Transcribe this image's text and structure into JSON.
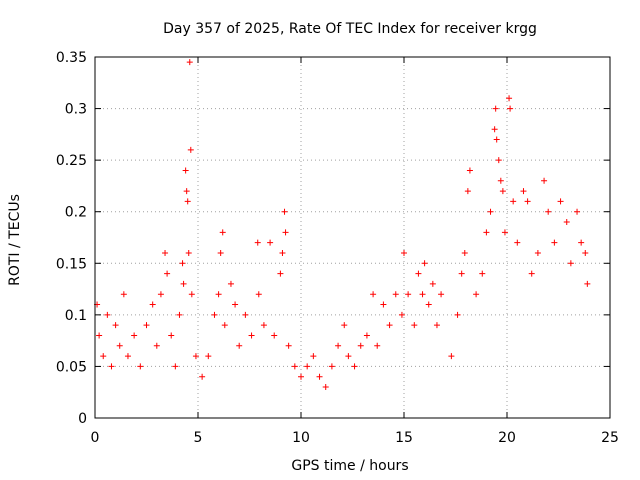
{
  "chart_data": {
    "type": "scatter",
    "title": "Day 357 of 2025, Rate Of TEC Index for receiver krgg",
    "xlabel": "GPS time / hours",
    "ylabel": "ROTI / TECUs",
    "xlim": [
      0,
      25
    ],
    "ylim": [
      0,
      0.35
    ],
    "x_ticks": [
      0,
      5,
      10,
      15,
      20,
      25
    ],
    "y_ticks": [
      0,
      0.05,
      0.1,
      0.15,
      0.2,
      0.25,
      0.3,
      0.35
    ],
    "x_tick_labels": [
      "0",
      "5",
      "10",
      "15",
      "20",
      "25"
    ],
    "y_tick_labels": [
      "0",
      "0.05",
      "0.1",
      "0.15",
      "0.2",
      "0.25",
      "0.3",
      "0.35"
    ],
    "grid": true,
    "marker": "+",
    "color": "#ff0000",
    "series": [
      {
        "points": [
          [
            0.1,
            0.11
          ],
          [
            0.2,
            0.08
          ],
          [
            0.4,
            0.06
          ],
          [
            0.6,
            0.1
          ],
          [
            0.8,
            0.05
          ],
          [
            1.0,
            0.09
          ],
          [
            1.2,
            0.07
          ],
          [
            1.4,
            0.12
          ],
          [
            1.6,
            0.06
          ],
          [
            1.9,
            0.08
          ],
          [
            2.2,
            0.05
          ],
          [
            2.5,
            0.09
          ],
          [
            2.8,
            0.11
          ],
          [
            3.0,
            0.07
          ],
          [
            3.2,
            0.12
          ],
          [
            3.4,
            0.16
          ],
          [
            3.5,
            0.14
          ],
          [
            3.7,
            0.08
          ],
          [
            3.9,
            0.05
          ],
          [
            4.1,
            0.1
          ],
          [
            4.25,
            0.15
          ],
          [
            4.3,
            0.13
          ],
          [
            4.4,
            0.24
          ],
          [
            4.45,
            0.22
          ],
          [
            4.5,
            0.21
          ],
          [
            4.55,
            0.16
          ],
          [
            4.6,
            0.345
          ],
          [
            4.65,
            0.26
          ],
          [
            4.7,
            0.12
          ],
          [
            4.9,
            0.06
          ],
          [
            5.2,
            0.04
          ],
          [
            5.5,
            0.06
          ],
          [
            5.8,
            0.1
          ],
          [
            6.0,
            0.12
          ],
          [
            6.1,
            0.16
          ],
          [
            6.2,
            0.18
          ],
          [
            6.3,
            0.09
          ],
          [
            6.6,
            0.13
          ],
          [
            6.8,
            0.11
          ],
          [
            7.0,
            0.07
          ],
          [
            7.3,
            0.1
          ],
          [
            7.6,
            0.08
          ],
          [
            7.9,
            0.17
          ],
          [
            7.95,
            0.12
          ],
          [
            8.2,
            0.09
          ],
          [
            8.5,
            0.17
          ],
          [
            8.7,
            0.08
          ],
          [
            9.0,
            0.14
          ],
          [
            9.1,
            0.16
          ],
          [
            9.2,
            0.2
          ],
          [
            9.25,
            0.18
          ],
          [
            9.4,
            0.07
          ],
          [
            9.7,
            0.05
          ],
          [
            10.0,
            0.04
          ],
          [
            10.3,
            0.05
          ],
          [
            10.6,
            0.06
          ],
          [
            10.9,
            0.04
          ],
          [
            11.2,
            0.03
          ],
          [
            11.5,
            0.05
          ],
          [
            11.8,
            0.07
          ],
          [
            12.1,
            0.09
          ],
          [
            12.3,
            0.06
          ],
          [
            12.6,
            0.05
          ],
          [
            12.9,
            0.07
          ],
          [
            13.2,
            0.08
          ],
          [
            13.5,
            0.12
          ],
          [
            13.7,
            0.07
          ],
          [
            14.0,
            0.11
          ],
          [
            14.3,
            0.09
          ],
          [
            14.6,
            0.12
          ],
          [
            14.9,
            0.1
          ],
          [
            15.0,
            0.16
          ],
          [
            15.2,
            0.12
          ],
          [
            15.5,
            0.09
          ],
          [
            15.7,
            0.14
          ],
          [
            15.9,
            0.12
          ],
          [
            16.0,
            0.15
          ],
          [
            16.2,
            0.11
          ],
          [
            16.4,
            0.13
          ],
          [
            16.6,
            0.09
          ],
          [
            16.8,
            0.12
          ],
          [
            17.3,
            0.06
          ],
          [
            17.6,
            0.1
          ],
          [
            17.8,
            0.14
          ],
          [
            17.95,
            0.16
          ],
          [
            18.1,
            0.22
          ],
          [
            18.2,
            0.24
          ],
          [
            18.5,
            0.12
          ],
          [
            18.8,
            0.14
          ],
          [
            19.0,
            0.18
          ],
          [
            19.2,
            0.2
          ],
          [
            19.4,
            0.28
          ],
          [
            19.45,
            0.3
          ],
          [
            19.5,
            0.27
          ],
          [
            19.6,
            0.25
          ],
          [
            19.7,
            0.23
          ],
          [
            19.8,
            0.22
          ],
          [
            19.9,
            0.18
          ],
          [
            20.1,
            0.31
          ],
          [
            20.15,
            0.3
          ],
          [
            20.3,
            0.21
          ],
          [
            20.5,
            0.17
          ],
          [
            20.8,
            0.22
          ],
          [
            21.0,
            0.21
          ],
          [
            21.2,
            0.14
          ],
          [
            21.5,
            0.16
          ],
          [
            21.8,
            0.23
          ],
          [
            22.0,
            0.2
          ],
          [
            22.3,
            0.17
          ],
          [
            22.6,
            0.21
          ],
          [
            22.9,
            0.19
          ],
          [
            23.1,
            0.15
          ],
          [
            23.4,
            0.2
          ],
          [
            23.6,
            0.17
          ],
          [
            23.8,
            0.16
          ],
          [
            23.9,
            0.13
          ]
        ]
      }
    ]
  }
}
